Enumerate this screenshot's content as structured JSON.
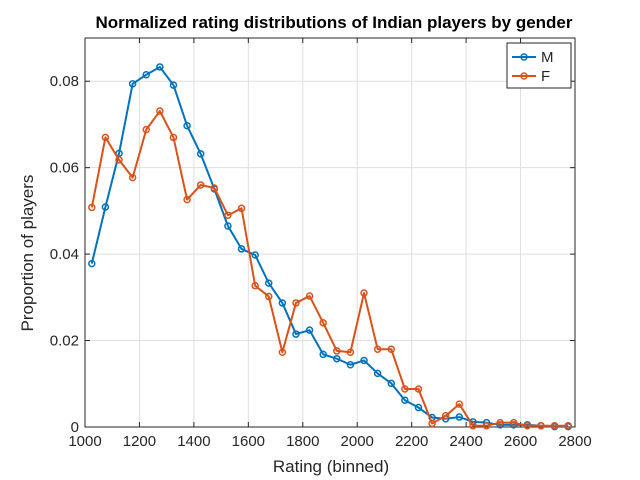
{
  "chart_data": {
    "type": "line",
    "title": "Normalized rating distributions of Indian players by gender",
    "xlabel": "Rating (binned)",
    "ylabel": "Proportion of players",
    "xlim": [
      1000,
      2800
    ],
    "ylim": [
      0,
      0.09
    ],
    "xticks": [
      1000,
      1200,
      1400,
      1600,
      1800,
      2000,
      2200,
      2400,
      2600,
      2800
    ],
    "yticks": [
      0,
      0.02,
      0.04,
      0.06,
      0.08
    ],
    "xtick_labels": [
      "1000",
      "1200",
      "1400",
      "1600",
      "1800",
      "2000",
      "2200",
      "2400",
      "2600",
      "2800"
    ],
    "ytick_labels": [
      "0",
      "0.02",
      "0.04",
      "0.06",
      "0.08"
    ],
    "grid": true,
    "legend_position": "top-right",
    "x": [
      1025,
      1075,
      1125,
      1175,
      1225,
      1275,
      1325,
      1375,
      1425,
      1475,
      1525,
      1575,
      1625,
      1675,
      1725,
      1775,
      1825,
      1875,
      1925,
      1975,
      2025,
      2075,
      2125,
      2175,
      2225,
      2275,
      2325,
      2375,
      2425,
      2475,
      2525,
      2575,
      2625,
      2675,
      2725,
      2775
    ],
    "series": [
      {
        "name": "M",
        "color": "#0072BD",
        "values": [
          0.0378,
          0.0509,
          0.0633,
          0.0794,
          0.0815,
          0.0833,
          0.0791,
          0.0697,
          0.0632,
          0.0551,
          0.0465,
          0.0412,
          0.0398,
          0.0333,
          0.0287,
          0.0215,
          0.0224,
          0.0168,
          0.0158,
          0.0144,
          0.0154,
          0.0124,
          0.0101,
          0.0062,
          0.0045,
          0.0022,
          0.0019,
          0.0023,
          0.0012,
          0.001,
          0.0005,
          0.0005,
          0.0005,
          0.0003,
          0.0001,
          0.0001
        ]
      },
      {
        "name": "F",
        "color": "#D95319",
        "values": [
          0.0508,
          0.067,
          0.0618,
          0.0577,
          0.0688,
          0.0731,
          0.067,
          0.0526,
          0.056,
          0.0553,
          0.049,
          0.0506,
          0.0327,
          0.0302,
          0.0173,
          0.0287,
          0.0303,
          0.0241,
          0.0176,
          0.0173,
          0.031,
          0.018,
          0.018,
          0.0088,
          0.0088,
          0.0008,
          0.0026,
          0.0053,
          0.0003,
          0.0003,
          0.001,
          0.001,
          0.0003,
          0.0003,
          0.0003,
          0.0003
        ]
      }
    ]
  }
}
